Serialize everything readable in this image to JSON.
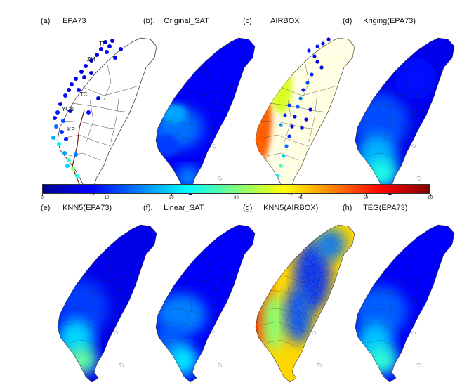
{
  "figure": {
    "panels": [
      {
        "tag": "(a)",
        "title": "EPA73",
        "type": "stations"
      },
      {
        "tag": "(b).",
        "title": "Original_SAT",
        "type": "field",
        "variant": "sat"
      },
      {
        "tag": "(c)",
        "title": "AIRBOX",
        "type": "airbox"
      },
      {
        "tag": "(d)",
        "title": "Kriging(EPA73)",
        "type": "field",
        "variant": "smooth"
      },
      {
        "tag": "(e)",
        "title": "KNN5(EPA73)",
        "type": "field",
        "variant": "knn"
      },
      {
        "tag": "(f).",
        "title": "Linear_SAT",
        "type": "field",
        "variant": "linear"
      },
      {
        "tag": "(g)",
        "title": "KNN5(AIRBOX)",
        "type": "field",
        "variant": "knnair"
      },
      {
        "tag": "(h)",
        "title": "TEG(EPA73)",
        "type": "field",
        "variant": "teg"
      }
    ],
    "region_labels": [
      "TP",
      "ZM",
      "TC",
      "YCN",
      "KP"
    ],
    "colorbar": {
      "min": 0,
      "max": 60,
      "ticks": [
        "0",
        "10",
        "20",
        "30",
        "40",
        "50",
        "60"
      ],
      "colors": [
        "#00008f",
        "#0000ff",
        "#0080ff",
        "#00ffff",
        "#80ff80",
        "#ffff00",
        "#ff8000",
        "#ff0000",
        "#800000"
      ]
    }
  }
}
